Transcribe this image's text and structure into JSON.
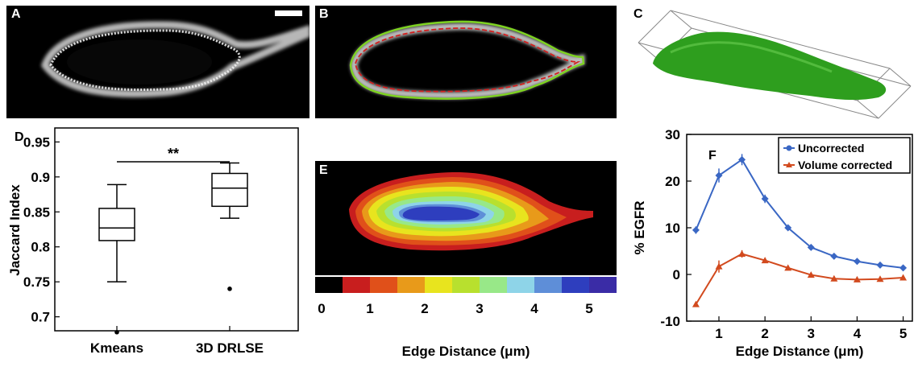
{
  "panel_labels": {
    "a": "A",
    "b": "B",
    "c": "C",
    "d": "D",
    "e": "E",
    "f": "F"
  },
  "colors": {
    "membrane": "#e8e8e8",
    "contour_green": "#7ed321",
    "contour_red": "#d42020",
    "cell_green": "#2e9e1e",
    "uncorrected": "#3a67c4",
    "volume_corrected": "#d24a1e"
  },
  "panel_d": {
    "significance": "**",
    "chart_data": {
      "type": "box",
      "categories": [
        "Kmeans",
        "3D DRLSE"
      ],
      "ylabel": "Jaccard Index",
      "ylim": [
        0.68,
        0.97
      ],
      "yticks": [
        "0.7",
        "0.75",
        "0.8",
        "0.85",
        "0.9",
        "0.95"
      ],
      "boxes": [
        {
          "whisker_low": 0.75,
          "q1": 0.809,
          "median": 0.827,
          "q3": 0.855,
          "whisker_high": 0.889,
          "outliers": [
            0.678
          ]
        },
        {
          "whisker_low": 0.841,
          "q1": 0.858,
          "median": 0.884,
          "q3": 0.905,
          "whisker_high": 0.92,
          "outliers": [
            0.74
          ]
        }
      ]
    }
  },
  "panel_e": {
    "chart_data": {
      "type": "heatmap",
      "xlabel": "Edge Distance (μm)",
      "colorbar_ticks": [
        "0",
        "1",
        "2",
        "3",
        "4",
        "5"
      ],
      "colorbar_range": [
        0,
        5.5
      ],
      "colorbar_colors": [
        "#000000",
        "#c81e1e",
        "#e0501a",
        "#e89a1a",
        "#e8e41e",
        "#b8e02e",
        "#98e888",
        "#8ed4e8",
        "#5e8ed8",
        "#2e3ebe",
        "#3a2ca6"
      ]
    }
  },
  "panel_f": {
    "chart_data": {
      "type": "line",
      "xlabel": "Edge Distance (μm)",
      "ylabel": "% EGFR",
      "xlim": [
        0.3,
        5.2
      ],
      "ylim": [
        -10,
        30
      ],
      "xticks": [
        "1",
        "2",
        "3",
        "4",
        "5"
      ],
      "yticks": [
        "-10",
        "0",
        "10",
        "20",
        "30"
      ],
      "legend": "top-right",
      "x": [
        0.5,
        1.0,
        1.5,
        2.0,
        2.5,
        3.0,
        3.5,
        4.0,
        4.5,
        5.0
      ],
      "series": [
        {
          "name": "Uncorrected",
          "values": [
            9.5,
            21.2,
            24.6,
            16.2,
            10.0,
            5.8,
            3.9,
            2.8,
            2.0,
            1.4
          ],
          "errors": [
            0.8,
            1.5,
            1.2,
            0.9,
            0.6,
            0.5,
            0.4,
            0.3,
            0.3,
            0.3
          ]
        },
        {
          "name": "Volume corrected",
          "values": [
            -6.4,
            1.7,
            4.4,
            3.0,
            1.4,
            -0.1,
            -0.9,
            -1.1,
            -1.0,
            -0.7
          ],
          "errors": [
            0.5,
            1.3,
            0.8,
            0.5,
            0.4,
            0.4,
            0.3,
            0.3,
            0.3,
            0.3
          ]
        }
      ]
    }
  }
}
